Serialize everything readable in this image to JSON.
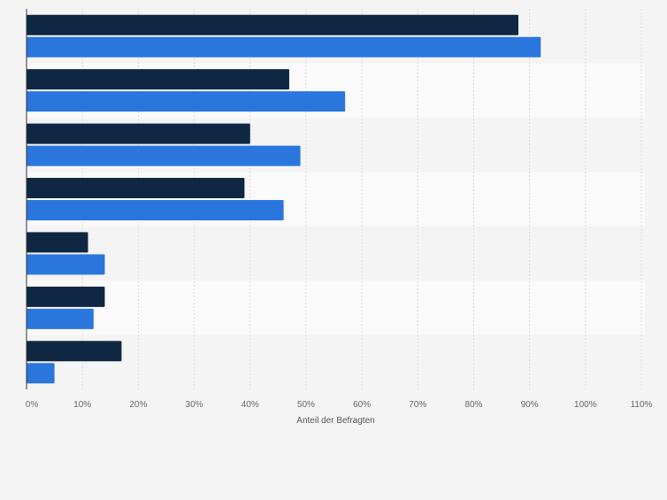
{
  "chart_data": {
    "type": "bar",
    "orientation": "horizontal",
    "title": "",
    "xlabel": "Anteil der Befragten",
    "ylabel": "",
    "xlim": [
      0,
      110
    ],
    "ticks": [
      0,
      10,
      20,
      30,
      40,
      50,
      60,
      70,
      80,
      90,
      100,
      110
    ],
    "tick_labels": [
      "0%",
      "10%",
      "20%",
      "30%",
      "40%",
      "50%",
      "60%",
      "70%",
      "80%",
      "90%",
      "100%",
      "110%"
    ],
    "categories": [
      "",
      "",
      "",
      "",
      "",
      "",
      ""
    ],
    "series": [
      {
        "name": "",
        "color": "#0f2742",
        "values": [
          88,
          47,
          40,
          39,
          11,
          14,
          17
        ]
      },
      {
        "name": "",
        "color": "#2a76dd",
        "values": [
          92,
          57,
          49,
          46,
          14,
          12,
          5
        ]
      }
    ],
    "grid": true,
    "legend": "none"
  }
}
